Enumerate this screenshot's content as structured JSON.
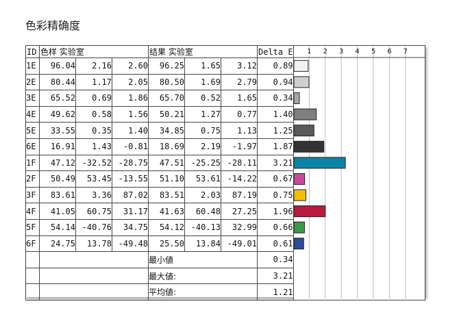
{
  "title": "色彩精确度",
  "headers": {
    "id": "ID",
    "sample": "色样 实验室",
    "result": "结果 实验室",
    "delta": "Delta E"
  },
  "rows": [
    {
      "id": "1E",
      "s1": "96.04",
      "s2": "2.16",
      "s3": "2.60",
      "r1": "96.25",
      "r2": "1.65",
      "r3": "3.12",
      "de": "0.89"
    },
    {
      "id": "2E",
      "s1": "80.44",
      "s2": "1.17",
      "s3": "2.05",
      "r1": "80.50",
      "r2": "1.69",
      "r3": "2.79",
      "de": "0.94"
    },
    {
      "id": "3E",
      "s1": "65.52",
      "s2": "0.69",
      "s3": "1.86",
      "r1": "65.70",
      "r2": "0.52",
      "r3": "1.65",
      "de": "0.34"
    },
    {
      "id": "4E",
      "s1": "49.62",
      "s2": "0.58",
      "s3": "1.56",
      "r1": "50.21",
      "r2": "1.27",
      "r3": "0.77",
      "de": "1.40"
    },
    {
      "id": "5E",
      "s1": "33.55",
      "s2": "0.35",
      "s3": "1.40",
      "r1": "34.85",
      "r2": "0.75",
      "r3": "1.13",
      "de": "1.25"
    },
    {
      "id": "6E",
      "s1": "16.91",
      "s2": "1.43",
      "s3": "-0.81",
      "r1": "18.69",
      "r2": "2.19",
      "r3": "-1.97",
      "de": "1.87"
    },
    {
      "id": "1F",
      "s1": "47.12",
      "s2": "-32.52",
      "s3": "-28.75",
      "r1": "47.51",
      "r2": "-25.25",
      "r3": "-28.11",
      "de": "3.21"
    },
    {
      "id": "2F",
      "s1": "50.49",
      "s2": "53.45",
      "s3": "-13.55",
      "r1": "51.10",
      "r2": "53.61",
      "r3": "-14.22",
      "de": "0.67"
    },
    {
      "id": "3F",
      "s1": "83.61",
      "s2": "3.36",
      "s3": "87.02",
      "r1": "83.51",
      "r2": "2.03",
      "r3": "87.19",
      "de": "0.75"
    },
    {
      "id": "4F",
      "s1": "41.05",
      "s2": "60.75",
      "s3": "31.17",
      "r1": "41.63",
      "r2": "60.48",
      "r3": "27.25",
      "de": "1.96"
    },
    {
      "id": "5F",
      "s1": "54.14",
      "s2": "-40.76",
      "s3": "34.75",
      "r1": "54.12",
      "r2": "-40.13",
      "r3": "32.99",
      "de": "0.66"
    },
    {
      "id": "6F",
      "s1": "24.75",
      "s2": "13.78",
      "s3": "-49.48",
      "r1": "25.50",
      "r2": "13.84",
      "r3": "-49.01",
      "de": "0.61"
    }
  ],
  "summary": [
    {
      "label": "最小値",
      "value": "0.34"
    },
    {
      "label": "最大値:",
      "value": "3.21"
    },
    {
      "label": "平均値:",
      "value": "1.21"
    }
  ],
  "chart_data": {
    "type": "bar",
    "orientation": "horizontal",
    "categories": [
      "1E",
      "2E",
      "3E",
      "4E",
      "5E",
      "6E",
      "1F",
      "2F",
      "3F",
      "4F",
      "5F",
      "6F"
    ],
    "values": [
      0.89,
      0.94,
      0.34,
      1.4,
      1.25,
      1.87,
      3.21,
      0.67,
      0.75,
      1.96,
      0.66,
      0.61
    ],
    "colors": [
      "#f3f3f3",
      "#cfcfcf",
      "#a8a8a8",
      "#7f7f7f",
      "#5a5a5a",
      "#333333",
      "#0a84a6",
      "#c84a9a",
      "#f0c000",
      "#b8193c",
      "#3a9a48",
      "#2c4c9a"
    ],
    "ticks": [
      "1",
      "2",
      "3",
      "4",
      "5",
      "6",
      "7"
    ],
    "xlim": [
      0,
      7.8
    ],
    "grid": true
  }
}
